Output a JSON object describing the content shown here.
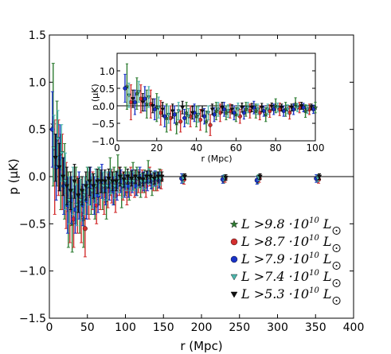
{
  "chart_data": [
    {
      "type": "scatter",
      "subtype": "errorbar",
      "xlabel": "r (Mpc)",
      "ylabel": "p (μK)",
      "xlim": [
        0,
        400
      ],
      "ylim": [
        -1.5,
        1.5
      ],
      "xticks": [
        "0",
        "50",
        "100",
        "150",
        "200",
        "250",
        "300",
        "350",
        "400"
      ],
      "yticks": [
        "−1.5",
        "−1.0",
        "−0.5",
        "0.0",
        "0.5",
        "1.0",
        "1.5"
      ],
      "zero_line": true,
      "legend_position": "lower-right",
      "series": [
        {
          "name": "L > 9.8 ·10^10 L⊙",
          "legend_prefix": "L >9.8 ·10",
          "legend_exp": "10",
          "legend_suffix": "L",
          "marker": "star",
          "color": "#2e7d32",
          "x": [
            5,
            10,
            15,
            20,
            25,
            30,
            35,
            40,
            45,
            50,
            55,
            60,
            65,
            70,
            75,
            80,
            85,
            90,
            95,
            100,
            105,
            110,
            115,
            120,
            125,
            130,
            135,
            140,
            145,
            175,
            229,
            274,
            352
          ],
          "y": [
            0.55,
            0.35,
            0.05,
            -0.05,
            -0.35,
            -0.5,
            -0.2,
            -0.3,
            -0.45,
            -0.15,
            -0.2,
            -0.25,
            -0.1,
            -0.15,
            -0.25,
            0.0,
            -0.1,
            0.05,
            -0.15,
            -0.05,
            -0.1,
            0.0,
            -0.05,
            -0.1,
            -0.05,
            0.05,
            -0.1,
            -0.05,
            -0.02,
            -0.02,
            -0.03,
            -0.03,
            -0.02
          ],
          "err": [
            0.65,
            0.45,
            0.4,
            0.4,
            0.4,
            0.3,
            0.3,
            0.3,
            0.3,
            0.25,
            0.2,
            0.2,
            0.2,
            0.2,
            0.2,
            0.2,
            0.2,
            0.18,
            0.18,
            0.15,
            0.15,
            0.15,
            0.15,
            0.12,
            0.12,
            0.12,
            0.1,
            0.1,
            0.1,
            0.05,
            0.04,
            0.04,
            0.04
          ]
        },
        {
          "name": "L > 8.7 ·10^10 L⊙",
          "legend_prefix": "L >8.7 ·10",
          "legend_exp": "10",
          "legend_suffix": "L",
          "marker": "circle",
          "color": "#d32f2f",
          "x": [
            7,
            12,
            17,
            22,
            27,
            32,
            37,
            42,
            47,
            52,
            57,
            62,
            67,
            72,
            77,
            82,
            87,
            92,
            97,
            102,
            107,
            112,
            117,
            122,
            127,
            132,
            137,
            142,
            147,
            177,
            231,
            276,
            354
          ],
          "y": [
            0.1,
            0.2,
            0.05,
            -0.2,
            -0.35,
            -0.45,
            -0.3,
            -0.4,
            -0.55,
            -0.2,
            -0.15,
            -0.3,
            -0.15,
            -0.2,
            -0.15,
            -0.1,
            -0.2,
            -0.05,
            -0.1,
            -0.15,
            -0.05,
            -0.1,
            -0.05,
            -0.05,
            -0.1,
            0.0,
            -0.05,
            -0.05,
            -0.03,
            -0.03,
            -0.02,
            -0.02,
            -0.03
          ],
          "err": [
            0.5,
            0.4,
            0.4,
            0.35,
            0.35,
            0.3,
            0.3,
            0.3,
            0.3,
            0.25,
            0.2,
            0.2,
            0.2,
            0.2,
            0.18,
            0.18,
            0.18,
            0.15,
            0.15,
            0.15,
            0.15,
            0.12,
            0.12,
            0.12,
            0.12,
            0.1,
            0.1,
            0.1,
            0.1,
            0.05,
            0.04,
            0.04,
            0.04
          ]
        },
        {
          "name": "L > 7.9 ·10^10 L⊙",
          "legend_prefix": "L >7.9 ·10",
          "legend_exp": "10",
          "legend_suffix": "L",
          "marker": "circle",
          "color": "#1a33c7",
          "x": [
            4,
            9,
            14,
            19,
            24,
            29,
            34,
            39,
            44,
            49,
            54,
            59,
            64,
            69,
            74,
            79,
            84,
            89,
            94,
            99,
            104,
            109,
            114,
            119,
            124,
            129,
            134,
            139,
            144,
            174,
            228,
            273,
            351
          ],
          "y": [
            0.5,
            0.1,
            0.2,
            -0.1,
            -0.3,
            -0.25,
            -0.35,
            -0.2,
            -0.3,
            -0.25,
            -0.1,
            -0.2,
            -0.2,
            -0.05,
            -0.15,
            -0.1,
            -0.15,
            -0.1,
            -0.05,
            -0.1,
            -0.1,
            -0.05,
            -0.1,
            0.0,
            -0.05,
            -0.05,
            -0.05,
            -0.02,
            -0.04,
            -0.02,
            -0.03,
            -0.04,
            -0.02
          ],
          "err": [
            0.4,
            0.35,
            0.35,
            0.3,
            0.3,
            0.25,
            0.25,
            0.25,
            0.22,
            0.2,
            0.2,
            0.2,
            0.18,
            0.18,
            0.15,
            0.15,
            0.15,
            0.15,
            0.12,
            0.12,
            0.12,
            0.12,
            0.1,
            0.1,
            0.1,
            0.1,
            0.08,
            0.08,
            0.08,
            0.05,
            0.04,
            0.04,
            0.04
          ]
        },
        {
          "name": "L > 7.4 ·10^10 L⊙",
          "legend_prefix": "L >7.4 ·10",
          "legend_exp": "10",
          "legend_suffix": "L",
          "marker": "triangle-down",
          "color": "#4db6ac",
          "x": [
            6,
            11,
            16,
            21,
            26,
            31,
            36,
            41,
            46,
            51,
            56,
            61,
            66,
            71,
            76,
            81,
            86,
            91,
            96,
            101,
            106,
            111,
            116,
            121,
            126,
            131,
            136,
            141,
            146,
            176,
            230,
            275,
            353
          ],
          "y": [
            0.3,
            0.4,
            0.25,
            -0.05,
            -0.25,
            -0.15,
            -0.3,
            -0.25,
            -0.2,
            -0.1,
            -0.15,
            -0.1,
            -0.05,
            -0.1,
            -0.1,
            -0.05,
            -0.1,
            -0.05,
            -0.1,
            -0.05,
            -0.05,
            -0.05,
            -0.02,
            -0.05,
            -0.05,
            0.0,
            -0.03,
            -0.02,
            -0.02,
            -0.02,
            -0.01,
            -0.01,
            -0.02
          ],
          "err": [
            0.35,
            0.3,
            0.3,
            0.3,
            0.25,
            0.25,
            0.22,
            0.22,
            0.2,
            0.2,
            0.18,
            0.18,
            0.15,
            0.15,
            0.15,
            0.13,
            0.13,
            0.12,
            0.12,
            0.1,
            0.1,
            0.1,
            0.1,
            0.08,
            0.08,
            0.08,
            0.08,
            0.07,
            0.07,
            0.04,
            0.03,
            0.03,
            0.03
          ]
        },
        {
          "name": "L > 5.3 ·10^10 L⊙",
          "legend_prefix": "L >5.3 ·10",
          "legend_exp": "10",
          "legend_suffix": "L",
          "marker": "triangle-down",
          "color": "#111111",
          "x": [
            8,
            13,
            18,
            23,
            28,
            33,
            38,
            43,
            48,
            53,
            58,
            63,
            68,
            73,
            78,
            83,
            88,
            93,
            98,
            103,
            108,
            113,
            118,
            123,
            128,
            133,
            138,
            143,
            148,
            178,
            232,
            277,
            355
          ],
          "y": [
            0.2,
            0.1,
            0.0,
            -0.1,
            -0.15,
            -0.05,
            -0.2,
            -0.15,
            -0.1,
            -0.05,
            -0.1,
            -0.05,
            -0.05,
            -0.05,
            -0.02,
            -0.05,
            -0.05,
            0.0,
            -0.03,
            0.0,
            -0.02,
            0.0,
            -0.02,
            -0.03,
            0.0,
            0.0,
            -0.02,
            0.0,
            0.0,
            0.0,
            -0.01,
            0.0,
            0.0
          ],
          "err": [
            0.25,
            0.25,
            0.2,
            0.2,
            0.2,
            0.18,
            0.18,
            0.15,
            0.15,
            0.15,
            0.13,
            0.13,
            0.12,
            0.12,
            0.1,
            0.1,
            0.1,
            0.1,
            0.08,
            0.08,
            0.08,
            0.07,
            0.07,
            0.07,
            0.06,
            0.06,
            0.06,
            0.05,
            0.05,
            0.03,
            0.03,
            0.03,
            0.03
          ]
        }
      ]
    },
    {
      "type": "scatter",
      "subtype": "errorbar",
      "role": "inset",
      "xlabel": "r (Mpc)",
      "ylabel": "p (μK)",
      "xlim": [
        0,
        100
      ],
      "ylim": [
        -1.0,
        1.5
      ],
      "xticks": [
        "0",
        "20",
        "40",
        "60",
        "80",
        "100"
      ],
      "yticks": [
        "−1.0",
        "−0.5",
        "0.0",
        "0.5",
        "1.0"
      ],
      "zero_line": true,
      "series_source": "same as main chart, restricted to r ≤ 100"
    }
  ]
}
